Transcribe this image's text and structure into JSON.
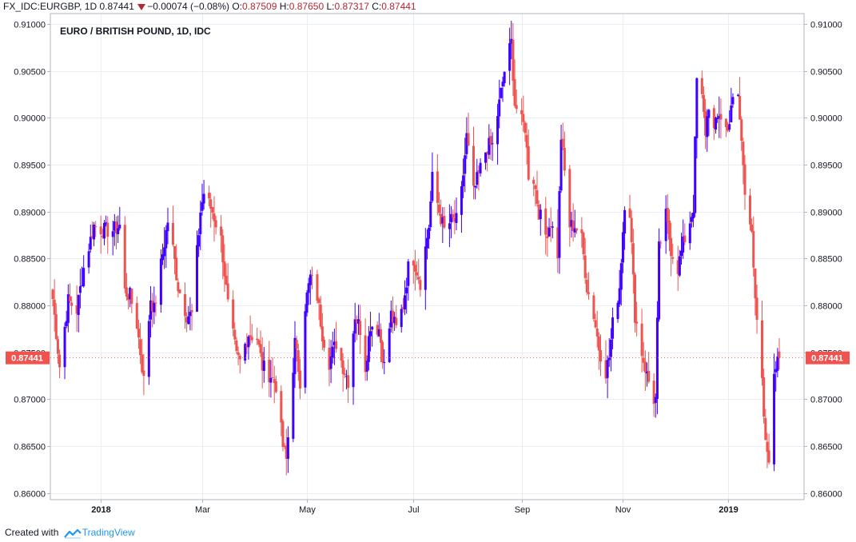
{
  "header": {
    "symbol": "FX_IDC:EURGBP, 1D",
    "last": "0.87441",
    "change": "−0.00074 (−0.08%)",
    "o_label": "O:",
    "o_value": "0.87509",
    "h_label": "H:",
    "h_value": "0.87650",
    "l_label": "L:",
    "l_value": "0.87317",
    "c_label": "C:",
    "c_value": "0.87441"
  },
  "footer": {
    "created_with": "Created with",
    "brand": "TradingView"
  },
  "colors": {
    "up": "#3e00ff",
    "down": "#ef5350",
    "grid": "#e9eef5",
    "axis": "#b2b5be",
    "badge": "#ef5350"
  },
  "chart_data": {
    "type": "candlestick",
    "title": "EURO / BRITISH POUND, 1D, IDC",
    "x_ticks": [
      {
        "date": "2018-01-01",
        "label": "2018",
        "bold": true
      },
      {
        "date": "2018-03-01",
        "label": "Mar",
        "bold": false
      },
      {
        "date": "2018-05-01",
        "label": "May",
        "bold": false
      },
      {
        "date": "2018-07-02",
        "label": "Jul",
        "bold": false
      },
      {
        "date": "2018-09-03",
        "label": "Sep",
        "bold": false
      },
      {
        "date": "2018-11-01",
        "label": "Nov",
        "bold": false
      },
      {
        "date": "2019-01-01",
        "label": "2019",
        "bold": true
      }
    ],
    "y_ticks": [
      "0.86000",
      "0.86500",
      "0.87000",
      "0.87500",
      "0.88000",
      "0.88500",
      "0.89000",
      "0.89500",
      "0.90000",
      "0.90500",
      "0.91000"
    ],
    "ylim": [
      0.8593,
      0.9111
    ],
    "x_range": [
      "2017-12-04",
      "2019-01-31"
    ],
    "last_price": "0.87441",
    "grid": true,
    "anchors": [
      [
        "2017-12-04",
        0.8807
      ],
      [
        "2017-12-08",
        0.8735
      ],
      [
        "2017-12-13",
        0.8805
      ],
      [
        "2017-12-18",
        0.8795
      ],
      [
        "2017-12-22",
        0.884
      ],
      [
        "2017-12-28",
        0.8885
      ],
      [
        "2018-01-03",
        0.888
      ],
      [
        "2018-01-08",
        0.888
      ],
      [
        "2018-01-12",
        0.8885
      ],
      [
        "2018-01-15",
        0.8815
      ],
      [
        "2018-01-18",
        0.881
      ],
      [
        "2018-01-22",
        0.878
      ],
      [
        "2018-01-26",
        0.872
      ],
      [
        "2018-01-30",
        0.8808
      ],
      [
        "2018-02-01",
        0.8795
      ],
      [
        "2018-02-06",
        0.8855
      ],
      [
        "2018-02-09",
        0.889
      ],
      [
        "2018-02-12",
        0.886
      ],
      [
        "2018-02-15",
        0.882
      ],
      [
        "2018-02-20",
        0.879
      ],
      [
        "2018-02-23",
        0.879
      ],
      [
        "2018-02-28",
        0.89
      ],
      [
        "2018-03-02",
        0.892
      ],
      [
        "2018-03-07",
        0.89
      ],
      [
        "2018-03-12",
        0.887
      ],
      [
        "2018-03-16",
        0.88
      ],
      [
        "2018-03-21",
        0.8745
      ],
      [
        "2018-03-23",
        0.874
      ],
      [
        "2018-03-28",
        0.877
      ],
      [
        "2018-04-02",
        0.8765
      ],
      [
        "2018-04-05",
        0.8735
      ],
      [
        "2018-04-10",
        0.8725
      ],
      [
        "2018-04-13",
        0.8715
      ],
      [
        "2018-04-17",
        0.865
      ],
      [
        "2018-04-19",
        0.8635
      ],
      [
        "2018-04-20",
        0.866
      ],
      [
        "2018-04-24",
        0.876
      ],
      [
        "2018-04-27",
        0.872
      ],
      [
        "2018-04-30",
        0.88
      ],
      [
        "2018-05-03",
        0.883
      ],
      [
        "2018-05-07",
        0.881
      ],
      [
        "2018-05-10",
        0.877
      ],
      [
        "2018-05-14",
        0.874
      ],
      [
        "2018-05-18",
        0.876
      ],
      [
        "2018-05-22",
        0.8735
      ],
      [
        "2018-05-25",
        0.872
      ],
      [
        "2018-05-29",
        0.879
      ],
      [
        "2018-06-01",
        0.8775
      ],
      [
        "2018-06-04",
        0.8735
      ],
      [
        "2018-06-07",
        0.878
      ],
      [
        "2018-06-12",
        0.8775
      ],
      [
        "2018-06-15",
        0.8735
      ],
      [
        "2018-06-19",
        0.879
      ],
      [
        "2018-06-22",
        0.8775
      ],
      [
        "2018-06-26",
        0.88
      ],
      [
        "2018-06-29",
        0.884
      ],
      [
        "2018-07-02",
        0.885
      ],
      [
        "2018-07-06",
        0.8825
      ],
      [
        "2018-07-11",
        0.8885
      ],
      [
        "2018-07-13",
        0.8935
      ],
      [
        "2018-07-17",
        0.89
      ],
      [
        "2018-07-20",
        0.888
      ],
      [
        "2018-07-24",
        0.889
      ],
      [
        "2018-07-27",
        0.889
      ],
      [
        "2018-07-30",
        0.892
      ],
      [
        "2018-08-02",
        0.898
      ],
      [
        "2018-08-06",
        0.892
      ],
      [
        "2018-08-09",
        0.894
      ],
      [
        "2018-08-14",
        0.897
      ],
      [
        "2018-08-17",
        0.897
      ],
      [
        "2018-08-21",
        0.9015
      ],
      [
        "2018-08-24",
        0.905
      ],
      [
        "2018-08-28",
        0.908
      ],
      [
        "2018-08-30",
        0.9015
      ],
      [
        "2018-09-03",
        0.8995
      ],
      [
        "2018-09-05",
        0.899
      ],
      [
        "2018-09-07",
        0.894
      ],
      [
        "2018-09-10",
        0.8935
      ],
      [
        "2018-09-13",
        0.89
      ],
      [
        "2018-09-17",
        0.8875
      ],
      [
        "2018-09-20",
        0.889
      ],
      [
        "2018-09-24",
        0.8855
      ],
      [
        "2018-09-26",
        0.898
      ],
      [
        "2018-10-01",
        0.8885
      ],
      [
        "2018-10-04",
        0.8885
      ],
      [
        "2018-10-08",
        0.887
      ],
      [
        "2018-10-11",
        0.882
      ],
      [
        "2018-10-15",
        0.879
      ],
      [
        "2018-10-18",
        0.8755
      ],
      [
        "2018-10-22",
        0.873
      ],
      [
        "2018-10-24",
        0.8745
      ],
      [
        "2018-10-26",
        0.878
      ],
      [
        "2018-10-30",
        0.882
      ],
      [
        "2018-11-02",
        0.891
      ],
      [
        "2018-11-05",
        0.89
      ],
      [
        "2018-11-08",
        0.879
      ],
      [
        "2018-11-12",
        0.875
      ],
      [
        "2018-11-15",
        0.8725
      ],
      [
        "2018-11-19",
        0.87
      ],
      [
        "2018-11-20",
        0.87
      ],
      [
        "2018-11-22",
        0.886
      ],
      [
        "2018-11-26",
        0.8895
      ],
      [
        "2018-11-29",
        0.886
      ],
      [
        "2018-12-03",
        0.884
      ],
      [
        "2018-12-06",
        0.8865
      ],
      [
        "2018-12-10",
        0.889
      ],
      [
        "2018-12-12",
        0.8905
      ],
      [
        "2018-12-14",
        0.904
      ],
      [
        "2018-12-17",
        0.902
      ],
      [
        "2018-12-19",
        0.8985
      ],
      [
        "2018-12-21",
        0.9015
      ],
      [
        "2018-12-24",
        0.8985
      ],
      [
        "2018-12-27",
        0.9005
      ],
      [
        "2019-01-01",
        0.8985
      ],
      [
        "2019-01-03",
        0.9015
      ],
      [
        "2019-01-07",
        0.902
      ],
      [
        "2019-01-09",
        0.8975
      ],
      [
        "2019-01-11",
        0.892
      ],
      [
        "2019-01-15",
        0.8885
      ],
      [
        "2019-01-17",
        0.88
      ],
      [
        "2019-01-18",
        0.878
      ],
      [
        "2019-01-21",
        0.8715
      ],
      [
        "2019-01-23",
        0.865
      ],
      [
        "2019-01-25",
        0.864
      ],
      [
        "2019-01-28",
        0.872
      ],
      [
        "2019-01-30",
        0.875
      ],
      [
        "2019-01-31",
        0.8744
      ]
    ],
    "last_bar": {
      "open": 0.87509,
      "high": 0.8765,
      "low": 0.87317,
      "close": 0.87441
    }
  }
}
